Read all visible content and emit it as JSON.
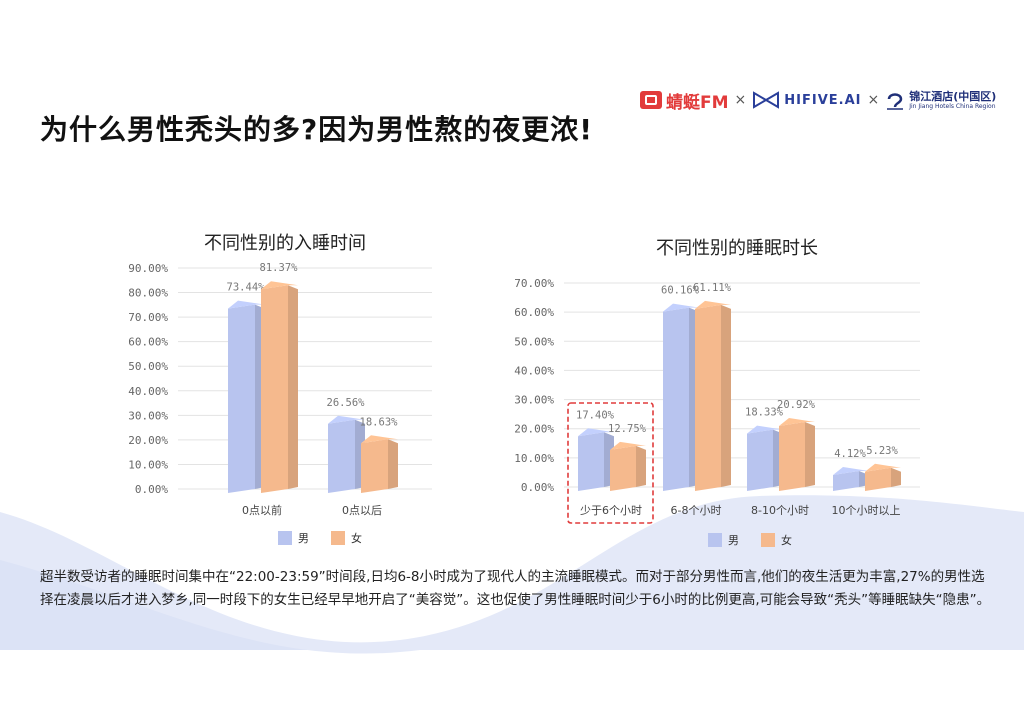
{
  "title": "为什么男性秃头的多?因为男性熬的夜更浓!",
  "logos": {
    "qingting": "蜻蜓FM",
    "hifive": "HIFIVE.AI",
    "times": "×",
    "jinjiang_cn": "锦江酒店(中国区)",
    "jinjiang_en": "Jin Jiang Hotels China Region"
  },
  "colors": {
    "male": "#b8c4ef",
    "female": "#f5b98d",
    "highlight_box": "#e03c3c",
    "wave": "#dfe5f7"
  },
  "chart_data": [
    {
      "type": "bar",
      "title": "不同性别的入睡时间",
      "categories": [
        "0点以前",
        "0点以后"
      ],
      "series": [
        {
          "name": "男",
          "values": [
            73.44,
            26.56
          ]
        },
        {
          "name": "女",
          "values": [
            81.37,
            18.63
          ]
        }
      ],
      "value_labels": [
        [
          "73.44%",
          "26.56%"
        ],
        [
          "81.37%",
          "18.63%"
        ]
      ],
      "yticks": [
        "0.00%",
        "10.00%",
        "20.00%",
        "30.00%",
        "40.00%",
        "50.00%",
        "60.00%",
        "70.00%",
        "80.00%",
        "90.00%"
      ],
      "ylim": [
        0,
        90
      ],
      "grid": true,
      "legend": "bottom"
    },
    {
      "type": "bar",
      "title": "不同性别的睡眠时长",
      "categories": [
        "少于6个小时",
        "6-8个小时",
        "8-10个小时",
        "10个小时以上"
      ],
      "series": [
        {
          "name": "男",
          "values": [
            17.4,
            60.16,
            18.33,
            4.12
          ]
        },
        {
          "name": "女",
          "values": [
            12.75,
            61.11,
            20.92,
            5.23
          ]
        }
      ],
      "value_labels": [
        [
          "17.40%",
          "60.16%",
          "18.33%",
          "4.12%"
        ],
        [
          "12.75%",
          "61.11%",
          "20.92%",
          "5.23%"
        ]
      ],
      "yticks": [
        "0.00%",
        "10.00%",
        "20.00%",
        "30.00%",
        "40.00%",
        "50.00%",
        "60.00%",
        "70.00%"
      ],
      "ylim": [
        0,
        70
      ],
      "grid": true,
      "legend": "bottom",
      "highlight_category": "少于6个小时"
    }
  ],
  "caption": {
    "line1": "超半数受访者的睡眠时间集中在“22:00-23:59”时间段,日均6-8小时成为了现代人的主流睡眠模式。而对于部分男性而言,他们的夜生活更为丰富,27%的男性选",
    "line2": "择在凌晨以后才进入梦乡,同一时段下的女生已经早早地开启了“美容觉”。这也促使了男性睡眠时间少于6小时的比例更高,可能会导致“秃头”等睡眠缺失“隐患”。"
  }
}
